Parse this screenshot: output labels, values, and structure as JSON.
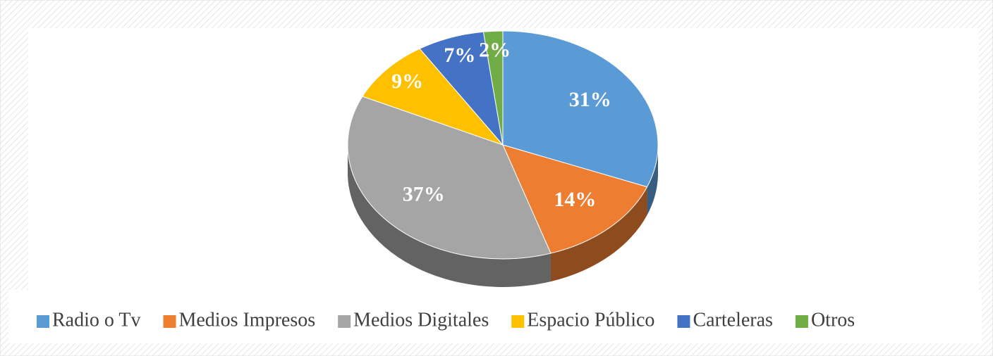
{
  "chart_data": {
    "type": "pie",
    "categories": [
      "Radio o Tv",
      "Medios Impresos",
      "Medios Digitales",
      "Espacio Público",
      "Carteleras",
      "Otros"
    ],
    "values": [
      31,
      14,
      37,
      9,
      7,
      2
    ],
    "value_labels": [
      "31%",
      "14%",
      "37%",
      "9%",
      "7%",
      "2%"
    ],
    "colors": [
      "#5b9bd5",
      "#ed7d31",
      "#a5a5a5",
      "#ffc000",
      "#4472c4",
      "#70ad47"
    ],
    "legend": "bottom"
  }
}
